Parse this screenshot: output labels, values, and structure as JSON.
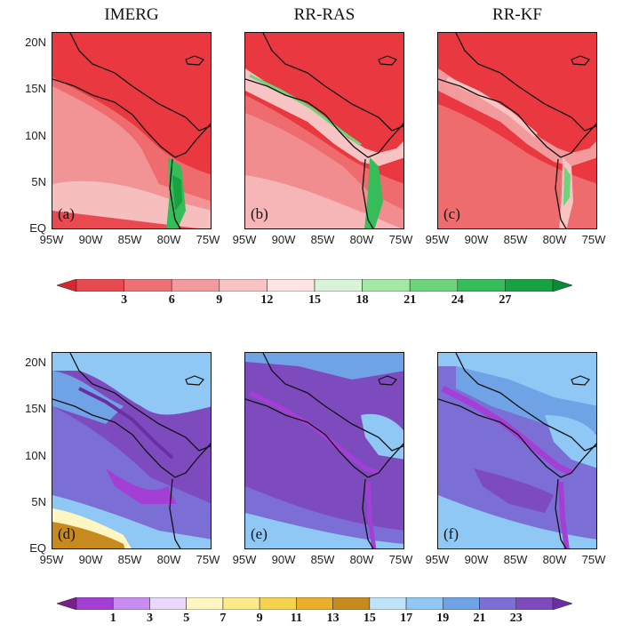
{
  "panels_top_titles": [
    "IMERG",
    "RR-RAS",
    "RR-KF"
  ],
  "panel_letters": [
    "(a)",
    "(b)",
    "(c)",
    "(d)",
    "(e)",
    "(f)"
  ],
  "y_ticks": [
    "20N",
    "15N",
    "10N",
    "5N",
    "EQ"
  ],
  "x_ticks": [
    "95W",
    "90W",
    "85W",
    "80W",
    "75W"
  ],
  "colorbar_top": {
    "labels": [
      "3",
      "6",
      "9",
      "12",
      "15",
      "18",
      "21",
      "24",
      "27"
    ],
    "colors": [
      "#d9252b",
      "#e84a50",
      "#ee7074",
      "#f29a9c",
      "#f7c3c3",
      "#fbe4e1",
      "#d8f3d8",
      "#a4e6a4",
      "#6cd47a",
      "#35bd5a",
      "#17a341",
      "#0a8a32"
    ]
  },
  "colorbar_bottom": {
    "labels": [
      "1",
      "3",
      "5",
      "7",
      "9",
      "11",
      "13",
      "15",
      "17",
      "19",
      "21",
      "23"
    ],
    "colors": [
      "#7a1f8a",
      "#a43fd6",
      "#c98cf0",
      "#ead8ff",
      "#fff6c2",
      "#fbe98a",
      "#f6d34e",
      "#e8b02a",
      "#c68a1e",
      "#bfe3fb",
      "#8fc8f5",
      "#6fa3e6",
      "#7b6fd6",
      "#7e4bbf",
      "#6a2fa3"
    ]
  }
}
